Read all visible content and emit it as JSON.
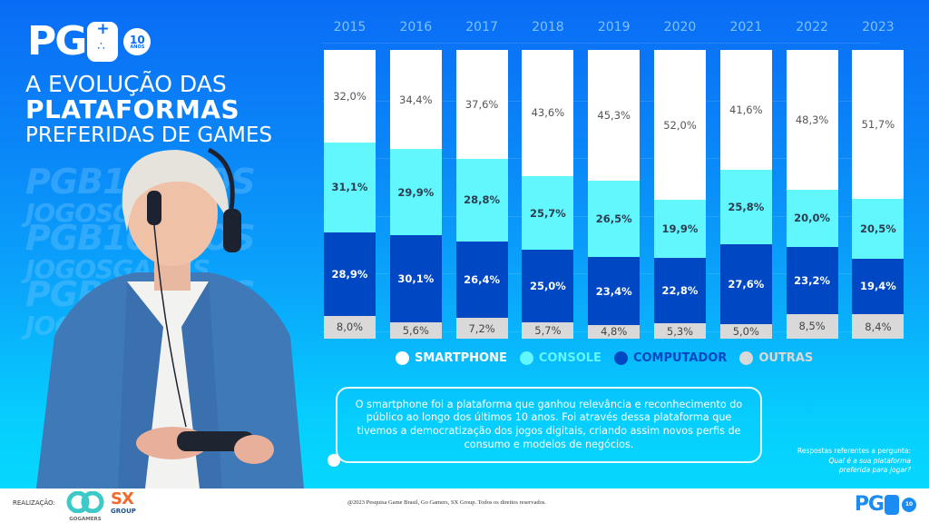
{
  "header": {
    "logo_text": "PG",
    "logo_badge_number": "10",
    "logo_badge_label": "ANOS",
    "title_line1": "A EVOLUÇÃO DAS",
    "title_line2": "PLATAFORMAS",
    "title_line3": "PREFERIDAS DE GAMES"
  },
  "watermark": {
    "line_a": "PGB10ANOS",
    "line_b": "JOGOSGAMES"
  },
  "colors": {
    "smartphone": "#ffffff",
    "console": "#62f6fd",
    "computador": "#0047c4",
    "outras": "#d9d9d9"
  },
  "chart_data": {
    "type": "bar",
    "stacked": true,
    "title": "A evolução das plataformas preferidas de games",
    "xlabel": "",
    "ylabel": "",
    "ylim": [
      0,
      100
    ],
    "grid": true,
    "legend_position": "bottom",
    "categories": [
      "2015",
      "2016",
      "2017",
      "2018",
      "2019",
      "2020",
      "2021",
      "2022",
      "2023"
    ],
    "series": [
      {
        "name": "OUTRAS",
        "key": "outras",
        "values": [
          8.0,
          5.6,
          7.2,
          5.7,
          4.8,
          5.3,
          5.0,
          8.5,
          8.4
        ],
        "labels": [
          "8,0%",
          "5,6%",
          "7,2%",
          "5,7%",
          "4,8%",
          "5,3%",
          "5,0%",
          "8,5%",
          "8,4%"
        ]
      },
      {
        "name": "COMPUTADOR",
        "key": "computador",
        "values": [
          28.9,
          30.1,
          26.4,
          25.0,
          23.4,
          22.8,
          27.6,
          23.2,
          19.4
        ],
        "labels": [
          "28,9%",
          "30,1%",
          "26,4%",
          "25,0%",
          "23,4%",
          "22,8%",
          "27,6%",
          "23,2%",
          "19,4%"
        ]
      },
      {
        "name": "CONSOLE",
        "key": "console",
        "values": [
          31.1,
          29.9,
          28.8,
          25.7,
          26.5,
          19.9,
          25.8,
          20.0,
          20.5
        ],
        "labels": [
          "31,1%",
          "29,9%",
          "28,8%",
          "25,7%",
          "26,5%",
          "19,9%",
          "25,8%",
          "20,0%",
          "20,5%"
        ]
      },
      {
        "name": "SMARTPHONE",
        "key": "smartphone",
        "values": [
          32.0,
          34.4,
          37.6,
          43.6,
          45.3,
          52.0,
          41.6,
          48.3,
          51.7
        ],
        "labels": [
          "32,0%",
          "34,4%",
          "37,6%",
          "43,6%",
          "45,3%",
          "52,0%",
          "41,6%",
          "48,3%",
          "51,7%"
        ]
      }
    ],
    "legend": [
      {
        "label": "SMARTPHONE",
        "key": "smartphone",
        "text_color": "#ffffff"
      },
      {
        "label": "CONSOLE",
        "key": "console",
        "text_color": "#62f6fd"
      },
      {
        "label": "COMPUTADOR",
        "key": "computador",
        "text_color": "#0047c4"
      },
      {
        "label": "OUTRAS",
        "key": "outras",
        "text_color": "#d9d9d9"
      }
    ]
  },
  "callout": {
    "text": "O smartphone foi a plataforma que ganhou relevância e reconhecimento do público ao longo dos últimos 10 anos. Foi através dessa plataforma que tivemos a democratização dos jogos digitais, criando assim novos perfis de consumo e modelos de negócios."
  },
  "question": {
    "intro": "Respostas referentes a pergunta:",
    "q1": "Qual é a sua plataforma",
    "q2": "preferida para jogar?"
  },
  "footer": {
    "realizacao_label": "REALIZAÇÃO:",
    "partner1": "GOGAMERS",
    "partner2_top": "SX",
    "partner2_bottom": "GROUP",
    "copyright": "@2023 Pesquisa Game Brasil, Go Gamers, SX Group. Todos os direitos reservados.",
    "logo_text": "PG",
    "logo_badge_number": "10"
  }
}
